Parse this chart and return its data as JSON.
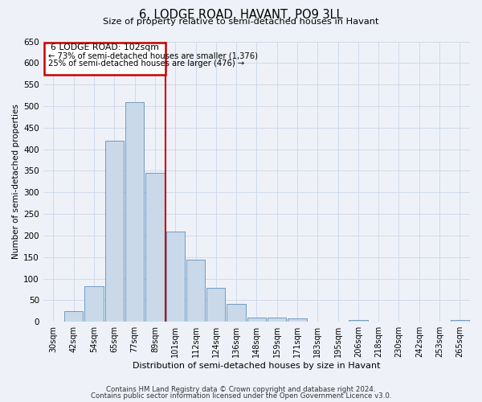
{
  "title": "6, LODGE ROAD, HAVANT, PO9 3LL",
  "subtitle": "Size of property relative to semi-detached houses in Havant",
  "xlabel": "Distribution of semi-detached houses by size in Havant",
  "ylabel": "Number of semi-detached properties",
  "bar_labels": [
    "30sqm",
    "42sqm",
    "54sqm",
    "65sqm",
    "77sqm",
    "89sqm",
    "101sqm",
    "112sqm",
    "124sqm",
    "136sqm",
    "148sqm",
    "159sqm",
    "171sqm",
    "183sqm",
    "195sqm",
    "206sqm",
    "218sqm",
    "230sqm",
    "242sqm",
    "253sqm",
    "265sqm"
  ],
  "bar_values": [
    0,
    25,
    82,
    420,
    510,
    345,
    210,
    143,
    78,
    42,
    10,
    10,
    7,
    0,
    0,
    4,
    0,
    0,
    0,
    0,
    4
  ],
  "bar_color": "#c9d9ea",
  "bar_edge_color": "#6090b8",
  "ylim": [
    0,
    650
  ],
  "yticks": [
    0,
    50,
    100,
    150,
    200,
    250,
    300,
    350,
    400,
    450,
    500,
    550,
    600,
    650
  ],
  "property_line_label": "6 LODGE ROAD: 102sqm",
  "annotation_smaller": "← 73% of semi-detached houses are smaller (1,376)",
  "annotation_larger": "25% of semi-detached houses are larger (476) →",
  "annotation_box_edge": "#cc0000",
  "grid_color": "#d0daea",
  "background_color": "#eef2f8",
  "footnote1": "Contains HM Land Registry data © Crown copyright and database right 2024.",
  "footnote2": "Contains public sector information licensed under the Open Government Licence v3.0."
}
